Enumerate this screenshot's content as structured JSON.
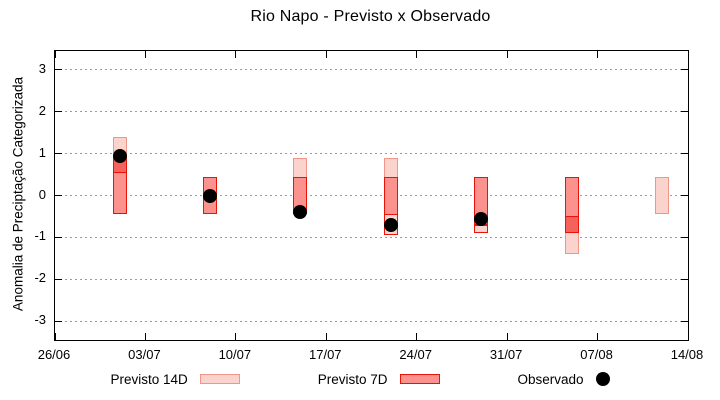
{
  "title": "Rio Napo - Previsto x Observado",
  "chart_data": {
    "type": "candlestick",
    "title": "Rio Napo - Previsto x Observado",
    "xlabel": "",
    "ylabel": "Anomalia de Preciptação Categorizada",
    "ylim": [
      -3.45,
      3.45
    ],
    "y_ticks": [
      -3,
      -2,
      -1,
      0,
      1,
      2,
      3
    ],
    "x_tick_labels": [
      "26/06",
      "03/07",
      "10/07",
      "17/07",
      "24/07",
      "31/07",
      "07/08",
      "14/08"
    ],
    "x_tick_days": [
      0,
      7,
      14,
      21,
      28,
      35,
      42,
      49
    ],
    "x_total_days": 49,
    "grid": "horizontal-dotted",
    "legend_position": "bottom-center",
    "legend": [
      {
        "label": "Previsto 14D",
        "swatch": "light-box"
      },
      {
        "label": "Previsto 7D",
        "swatch": "red-box"
      },
      {
        "label": "Observado",
        "swatch": "black-dot"
      }
    ],
    "colors": {
      "light_fill": "#fbd3cd",
      "light_border": "#f0958a",
      "red_fill_medium": "#fb928d",
      "red_fill_dark": "#f5625d",
      "red_fill_light": "#fbd3cd",
      "red_border": "#e91408",
      "observed": "#000000",
      "grid": "#9a9a9a"
    },
    "bars": [
      {
        "date": "01/07",
        "day": 5,
        "light_range": [
          -0.45,
          1.4
        ],
        "red_range": [
          -0.45,
          0.9
        ],
        "red_segments": [
          {
            "range": [
              0.55,
              0.9
            ],
            "tone": "dark"
          },
          {
            "range": [
              -0.45,
              0.55
            ],
            "tone": "medium"
          }
        ],
        "observed": 0.95
      },
      {
        "date": "08/07",
        "day": 12,
        "light_range": null,
        "red_range": [
          -0.45,
          0.45
        ],
        "red_segments": [
          {
            "range": [
              -0.45,
              0.45
            ],
            "tone": "medium"
          }
        ],
        "observed": 0.0
      },
      {
        "date": "15/07",
        "day": 19,
        "light_range": [
          -0.45,
          0.9
        ],
        "red_range": [
          -0.45,
          0.45
        ],
        "red_segments": [
          {
            "range": [
              -0.45,
              0.45
            ],
            "tone": "medium"
          }
        ],
        "observed": -0.4
      },
      {
        "date": "22/07",
        "day": 26,
        "light_range": [
          -0.95,
          0.9
        ],
        "red_range": [
          -0.95,
          0.45
        ],
        "red_segments": [
          {
            "range": [
              -0.45,
              0.45
            ],
            "tone": "medium"
          },
          {
            "range": [
              -0.95,
              -0.45
            ],
            "tone": "light"
          }
        ],
        "observed": -0.7
      },
      {
        "date": "29/07",
        "day": 33,
        "light_range": null,
        "red_range": [
          -0.9,
          0.45
        ],
        "red_segments": [
          {
            "range": [
              -0.7,
              0.45
            ],
            "tone": "medium"
          },
          {
            "range": [
              -0.9,
              -0.7
            ],
            "tone": "light"
          }
        ],
        "observed": -0.55
      },
      {
        "date": "05/08",
        "day": 40,
        "light_range": [
          -1.4,
          0.45
        ],
        "red_range": [
          -0.9,
          0.45
        ],
        "red_segments": [
          {
            "range": [
              -0.5,
              0.45
            ],
            "tone": "medium"
          },
          {
            "range": [
              -0.9,
              -0.5
            ],
            "tone": "dark"
          }
        ],
        "observed": null
      },
      {
        "date": "12/08",
        "day": 47,
        "light_range": [
          -0.45,
          0.45
        ],
        "red_range": null,
        "red_segments": [],
        "observed": null
      }
    ]
  }
}
